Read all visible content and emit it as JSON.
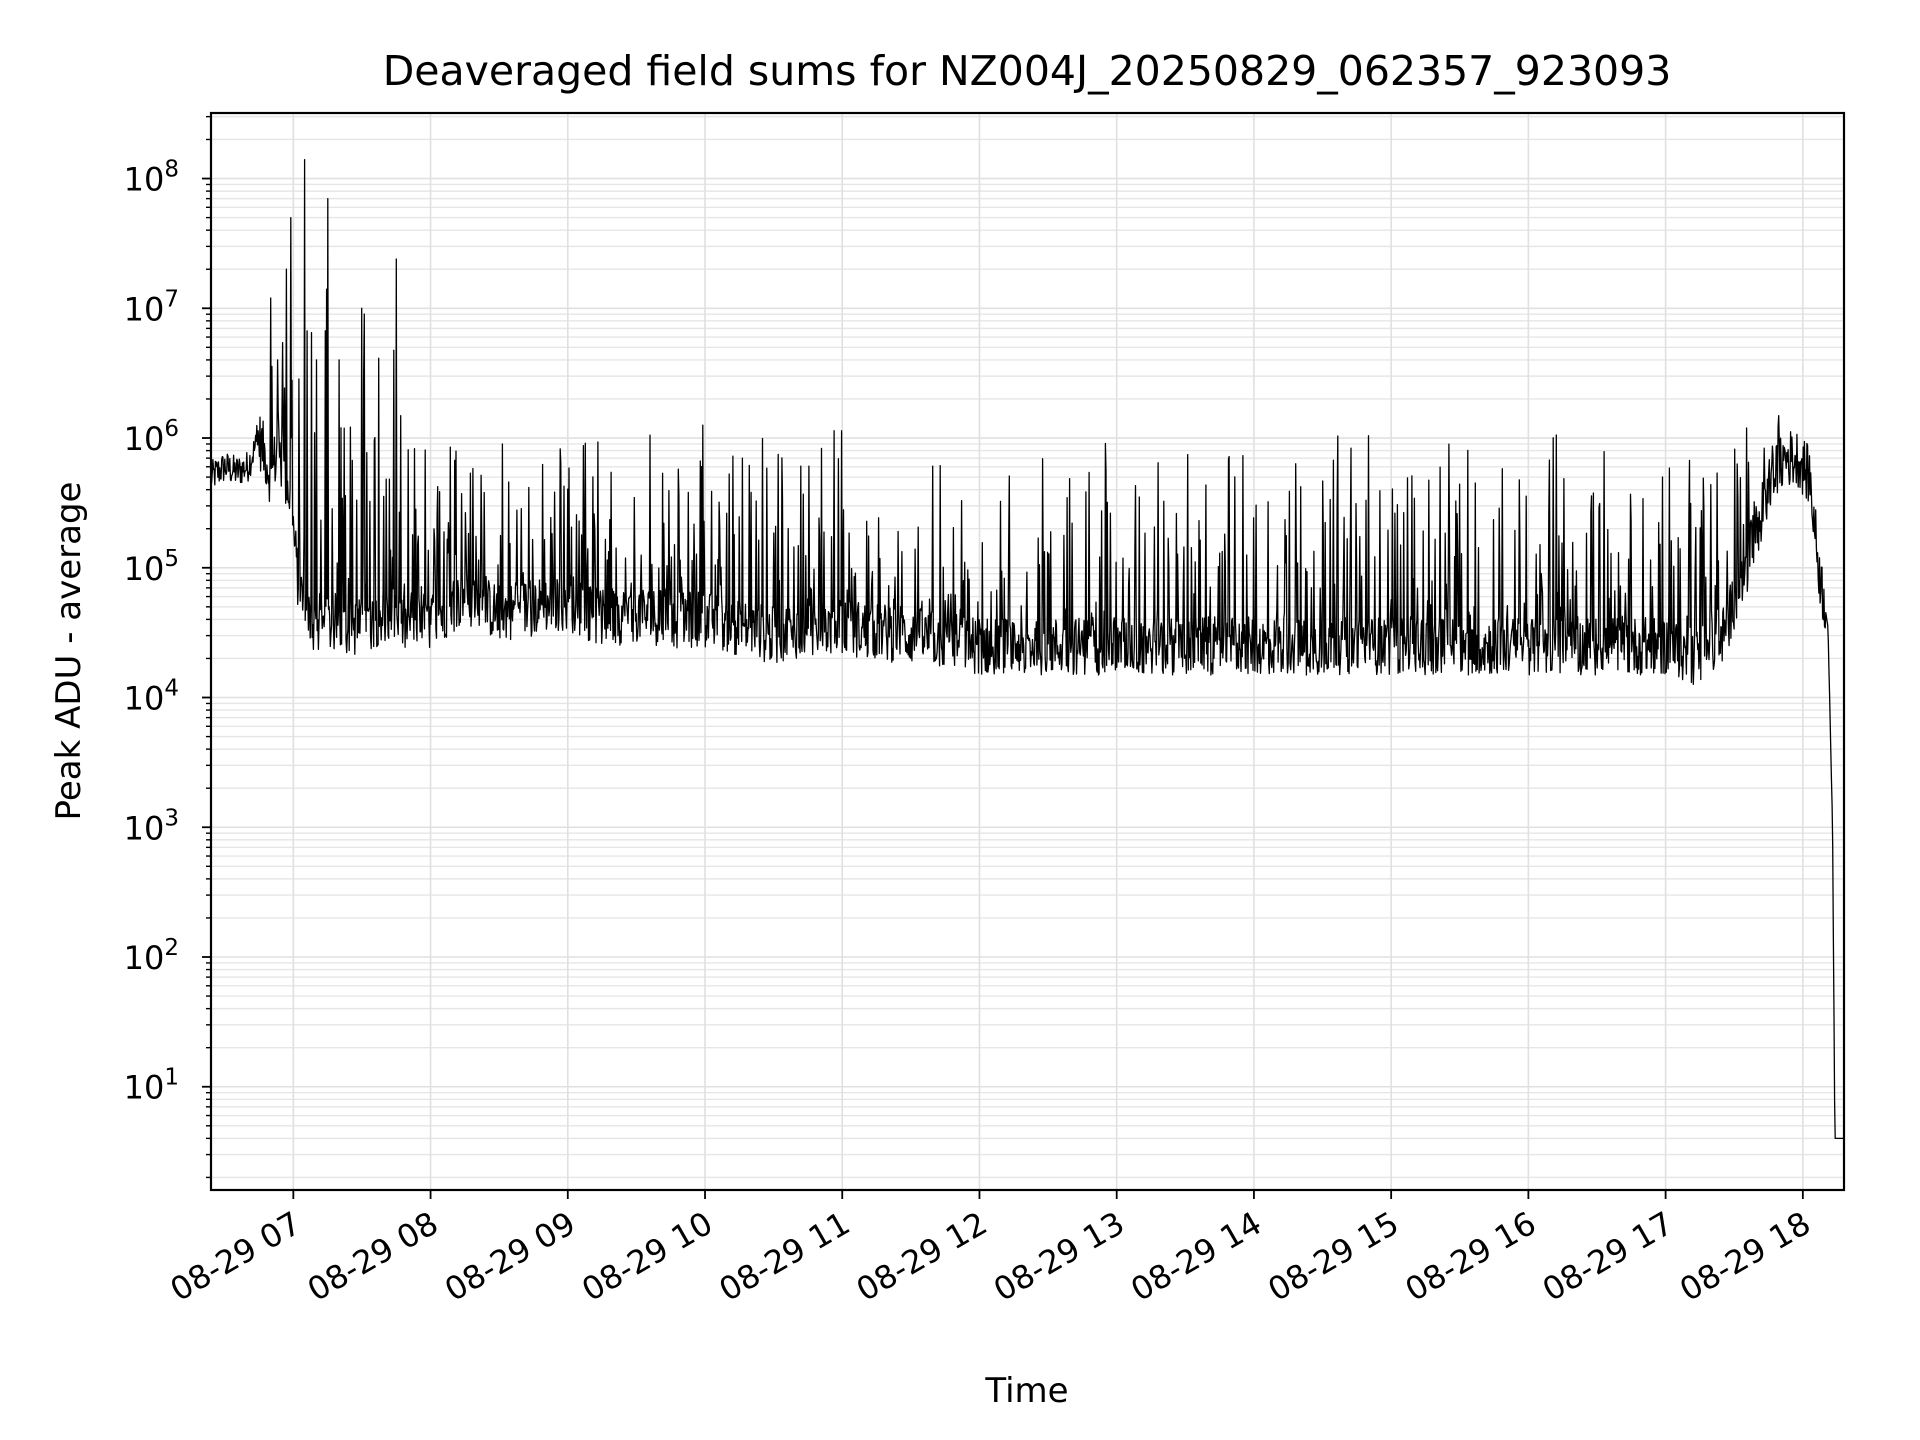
{
  "chart_data": {
    "type": "line",
    "title": "Deaveraged field sums for NZ004J_20250829_062357_923093",
    "xlabel": "Time",
    "ylabel": "Peak ADU - average",
    "y_scale": "log",
    "ylim": [
      1.6,
      320000000
    ],
    "xlim": [
      "2025-08-29 06:24",
      "2025-08-29 18:18"
    ],
    "x_tick_labels": [
      "08-29 07",
      "08-29 08",
      "08-29 09",
      "08-29 10",
      "08-29 11",
      "08-29 12",
      "08-29 13",
      "08-29 14",
      "08-29 15",
      "08-29 16",
      "08-29 17",
      "08-29 18"
    ],
    "y_ticks": [
      {
        "base": "10",
        "exp": "1",
        "value": 10
      },
      {
        "base": "10",
        "exp": "2",
        "value": 100
      },
      {
        "base": "10",
        "exp": "3",
        "value": 1000
      },
      {
        "base": "10",
        "exp": "4",
        "value": 10000
      },
      {
        "base": "10",
        "exp": "5",
        "value": 100000
      },
      {
        "base": "10",
        "exp": "6",
        "value": 1000000
      },
      {
        "base": "10",
        "exp": "7",
        "value": 10000000
      },
      {
        "base": "10",
        "exp": "8",
        "value": 100000000
      }
    ],
    "grid": true,
    "legend": "none",
    "series": [
      {
        "color": "#000000",
        "x": [
          "2025-08-29 06:24",
          "2025-08-29 06:30",
          "2025-08-29 06:35",
          "2025-08-29 06:40",
          "2025-08-29 06:45",
          "2025-08-29 06:48",
          "2025-08-29 06:50",
          "2025-08-29 06:53",
          "2025-08-29 06:55",
          "2025-08-29 06:58",
          "2025-08-29 07:00",
          "2025-08-29 07:02",
          "2025-08-29 07:05",
          "2025-08-29 07:07",
          "2025-08-29 07:10",
          "2025-08-29 07:15",
          "2025-08-29 07:20",
          "2025-08-29 07:25",
          "2025-08-29 07:30",
          "2025-08-29 07:40",
          "2025-08-29 07:50",
          "2025-08-29 08:00",
          "2025-08-29 08:15",
          "2025-08-29 08:30",
          "2025-08-29 08:45",
          "2025-08-29 09:00",
          "2025-08-29 09:15",
          "2025-08-29 09:30",
          "2025-08-29 09:45",
          "2025-08-29 10:00",
          "2025-08-29 10:15",
          "2025-08-29 10:30",
          "2025-08-29 10:45",
          "2025-08-29 11:00",
          "2025-08-29 11:30",
          "2025-08-29 12:00",
          "2025-08-29 12:30",
          "2025-08-29 13:00",
          "2025-08-29 13:30",
          "2025-08-29 14:00",
          "2025-08-29 14:30",
          "2025-08-29 15:00",
          "2025-08-29 15:30",
          "2025-08-29 16:00",
          "2025-08-29 16:30",
          "2025-08-29 17:00",
          "2025-08-29 17:15",
          "2025-08-29 17:25",
          "2025-08-29 17:35",
          "2025-08-29 17:45",
          "2025-08-29 17:52",
          "2025-08-29 17:58",
          "2025-08-29 18:03",
          "2025-08-29 18:07",
          "2025-08-29 18:11",
          "2025-08-29 18:13",
          "2025-08-29 18:14",
          "2025-08-29 18:18"
        ],
        "y": [
          500000,
          600000,
          550000,
          600000,
          1000000,
          700000,
          500000,
          800000,
          600000,
          400000,
          200000,
          80000,
          50000,
          40000,
          35000,
          35000,
          40000,
          35000,
          35000,
          45000,
          35000,
          40000,
          60000,
          45000,
          50000,
          55000,
          40000,
          45000,
          40000,
          40000,
          35000,
          30000,
          35000,
          35000,
          30000,
          25000,
          25000,
          25000,
          25000,
          25000,
          25000,
          25000,
          25000,
          25000,
          25000,
          25000,
          20000,
          30000,
          100000,
          400000,
          700000,
          700000,
          500000,
          100000,
          35000,
          1000,
          4,
          4
        ],
        "spike_envelope": {
          "x": [
            "2025-08-29 06:45",
            "2025-08-29 06:50",
            "2025-08-29 06:53",
            "2025-08-29 06:57",
            "2025-08-29 06:59",
            "2025-08-29 07:05",
            "2025-08-29 07:10",
            "2025-08-29 07:15",
            "2025-08-29 07:20",
            "2025-08-29 07:30",
            "2025-08-29 07:45",
            "2025-08-29 08:00",
            "2025-08-29 09:00",
            "2025-08-29 10:00",
            "2025-08-29 11:00",
            "2025-08-29 12:00",
            "2025-08-29 13:00",
            "2025-08-29 14:00",
            "2025-08-29 15:00",
            "2025-08-29 16:00",
            "2025-08-29 17:00",
            "2025-08-29 17:20",
            "2025-08-29 17:35",
            "2025-08-29 17:50"
          ],
          "y": [
            2000000,
            12000000,
            4000000,
            20000000,
            50000000,
            140000000,
            4000000,
            70000000,
            4000000,
            10000000,
            24000000,
            1200000,
            1200000,
            1300000,
            1200000,
            1100000,
            1100000,
            1100000,
            1100000,
            1100000,
            1200000,
            1100000,
            1500000,
            1800000
          ]
        }
      }
    ]
  }
}
